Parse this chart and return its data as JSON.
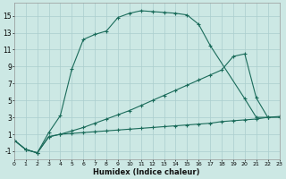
{
  "xlabel": "Humidex (Indice chaleur)",
  "bg_color": "#cce8e4",
  "grid_color": "#aacece",
  "line_color": "#1a6b5a",
  "xlim": [
    0,
    23
  ],
  "ylim": [
    -2,
    16.5
  ],
  "xticks": [
    0,
    1,
    2,
    3,
    4,
    5,
    6,
    7,
    8,
    9,
    10,
    11,
    12,
    13,
    14,
    15,
    16,
    17,
    18,
    19,
    20,
    21,
    22,
    23
  ],
  "yticks": [
    -1,
    1,
    3,
    5,
    7,
    9,
    11,
    13,
    15
  ],
  "curve1_x": [
    0,
    1,
    2,
    3,
    4,
    5,
    6,
    7,
    8,
    9,
    10,
    11,
    12,
    13,
    14,
    15,
    16,
    17,
    20,
    21,
    22
  ],
  "curve1_y": [
    0.3,
    -0.8,
    -1.2,
    1.2,
    3.2,
    8.7,
    12.2,
    12.8,
    13.2,
    14.8,
    15.3,
    15.6,
    15.5,
    15.4,
    15.3,
    15.1,
    14.0,
    11.5,
    5.2,
    3.0,
    3.0
  ],
  "curve2_x": [
    0,
    1,
    2,
    3,
    4,
    5,
    6,
    7,
    8,
    9,
    10,
    11,
    12,
    13,
    14,
    15,
    16,
    17,
    18,
    19,
    20,
    21,
    22,
    23
  ],
  "curve2_y": [
    0.3,
    -0.8,
    -1.2,
    0.7,
    1.0,
    1.1,
    1.2,
    1.3,
    1.4,
    1.5,
    1.6,
    1.7,
    1.8,
    1.9,
    2.0,
    2.1,
    2.2,
    2.3,
    2.5,
    2.6,
    2.7,
    2.8,
    3.0,
    3.1
  ],
  "curve3_x": [
    0,
    1,
    2,
    3,
    4,
    5,
    6,
    7,
    8,
    9,
    10,
    11,
    12,
    13,
    14,
    15,
    16,
    17,
    18,
    19,
    20,
    21,
    22,
    23
  ],
  "curve3_y": [
    0.3,
    -0.8,
    -1.2,
    0.7,
    1.0,
    1.4,
    1.8,
    2.3,
    2.8,
    3.3,
    3.8,
    4.4,
    5.0,
    5.6,
    6.2,
    6.8,
    7.4,
    8.0,
    8.6,
    10.2,
    10.5,
    5.3,
    3.0,
    3.0
  ]
}
